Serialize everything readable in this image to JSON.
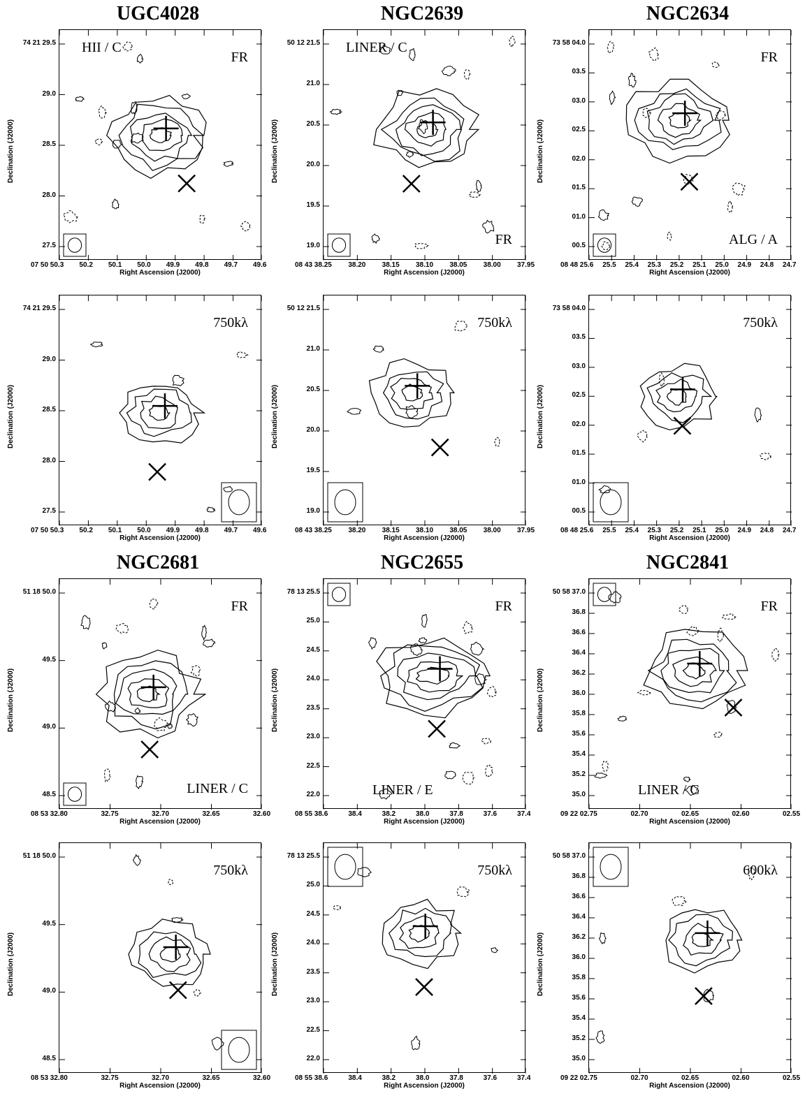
{
  "figure_titles": [
    {
      "text": "UGC4028"
    },
    {
      "text": "NGC2639"
    },
    {
      "text": "NGC2634"
    },
    {
      "text": "NGC2681"
    },
    {
      "text": "NGC2655"
    },
    {
      "text": "NGC2841"
    }
  ],
  "axis_labels": {
    "y": "Declination (J2000)",
    "x": "Right Ascension (J2000)"
  },
  "panels": [
    {
      "id": "ugc4028-top",
      "notes": [
        {
          "t": "HII / C",
          "pos": "tl"
        },
        {
          "t": "FR",
          "pos": "tr"
        }
      ],
      "yticks": [
        "74 21 29.5",
        "29.0",
        "28.5",
        "28.0",
        "27.5"
      ],
      "xticks": [
        "07 50 50.3",
        "50.2",
        "50.1",
        "50.0",
        "49.9",
        "49.8",
        "49.7",
        "49.6"
      ]
    },
    {
      "id": "ngc2639-top",
      "notes": [
        {
          "t": "LINER / C",
          "pos": "tl"
        },
        {
          "t": "FR",
          "pos": "br"
        }
      ],
      "yticks": [
        "50 12 21.5",
        "21.0",
        "20.5",
        "20.0",
        "19.5",
        "19.0"
      ],
      "xticks": [
        "08 43 38.25",
        "38.20",
        "38.15",
        "38.10",
        "38.05",
        "38.00",
        "37.95"
      ]
    },
    {
      "id": "ngc2634-top",
      "notes": [
        {
          "t": "FR",
          "pos": "tr"
        },
        {
          "t": "ALG / A",
          "pos": "br"
        }
      ],
      "yticks": [
        "73 58 04.0",
        "03.5",
        "03.0",
        "02.5",
        "02.0",
        "01.5",
        "01.0",
        "00.5"
      ],
      "xticks": [
        "08 48 25.6",
        "25.5",
        "25.4",
        "25.3",
        "25.2",
        "25.1",
        "25.0",
        "24.9",
        "24.8",
        "24.7"
      ]
    },
    {
      "id": "ugc4028-bot",
      "notes": [
        {
          "t": "750kλ",
          "pos": "tr"
        }
      ],
      "yticks": [
        "74 21 29.5",
        "29.0",
        "28.5",
        "28.0",
        "27.5"
      ],
      "xticks": [
        "07 50 50.3",
        "50.2",
        "50.1",
        "50.0",
        "49.9",
        "49.8",
        "49.7",
        "49.6"
      ]
    },
    {
      "id": "ngc2639-bot",
      "notes": [
        {
          "t": "750kλ",
          "pos": "tr"
        }
      ],
      "yticks": [
        "50 12 21.5",
        "21.0",
        "20.5",
        "20.0",
        "19.5",
        "19.0"
      ],
      "xticks": [
        "08 43 38.25",
        "38.20",
        "38.15",
        "38.10",
        "38.05",
        "38.00",
        "37.95"
      ]
    },
    {
      "id": "ngc2634-bot",
      "notes": [
        {
          "t": "750kλ",
          "pos": "tr"
        }
      ],
      "yticks": [
        "73 58 04.0",
        "03.5",
        "03.0",
        "02.5",
        "02.0",
        "01.5",
        "01.0",
        "00.5"
      ],
      "xticks": [
        "08 48 25.6",
        "25.5",
        "25.4",
        "25.3",
        "25.2",
        "25.1",
        "25.0",
        "24.9",
        "24.8",
        "24.7"
      ]
    },
    {
      "id": "ngc2681-top",
      "notes": [
        {
          "t": "FR",
          "pos": "tr"
        },
        {
          "t": "LINER / C",
          "pos": "br"
        }
      ],
      "yticks": [
        "51 18 50.0",
        "49.5",
        "49.0",
        "48.5"
      ],
      "xticks": [
        "08 53 32.80",
        "32.75",
        "32.70",
        "32.65",
        "32.60"
      ]
    },
    {
      "id": "ngc2655-top",
      "notes": [
        {
          "t": "FR",
          "pos": "tr"
        },
        {
          "t": "LINER / E",
          "pos": "bl"
        }
      ],
      "yticks": [
        "78 13 25.5",
        "25.0",
        "24.5",
        "24.0",
        "23.5",
        "23.0",
        "22.5",
        "22.0"
      ],
      "xticks": [
        "08 55 38.6",
        "38.4",
        "38.2",
        "38.0",
        "37.8",
        "37.6",
        "37.4"
      ]
    },
    {
      "id": "ngc2841-top",
      "notes": [
        {
          "t": "FR",
          "pos": "tr"
        },
        {
          "t": "LINER / C",
          "pos": "bl"
        }
      ],
      "yticks": [
        "50 58 37.0",
        "36.8",
        "36.6",
        "36.4",
        "36.2",
        "36.0",
        "35.8",
        "35.6",
        "35.4",
        "35.2",
        "35.0"
      ],
      "xticks": [
        "09 22 02.75",
        "02.70",
        "02.65",
        "02.60",
        "02.55"
      ]
    },
    {
      "id": "ngc2681-bot",
      "notes": [
        {
          "t": "750kλ",
          "pos": "tr"
        }
      ],
      "yticks": [
        "51 18 50.0",
        "49.5",
        "49.0",
        "48.5"
      ],
      "xticks": [
        "08 53 32.80",
        "32.75",
        "32.70",
        "32.65",
        "32.60"
      ]
    },
    {
      "id": "ngc2655-bot",
      "notes": [
        {
          "t": "750kλ",
          "pos": "tr"
        }
      ],
      "yticks": [
        "78 13 25.5",
        "25.0",
        "24.5",
        "24.0",
        "23.5",
        "23.0",
        "22.5",
        "22.0"
      ],
      "xticks": [
        "08 55 38.6",
        "38.4",
        "38.2",
        "38.0",
        "37.8",
        "37.6",
        "37.4"
      ]
    },
    {
      "id": "ngc2841-bot",
      "notes": [
        {
          "t": "600kλ",
          "pos": "tr"
        }
      ],
      "yticks": [
        "50 58 37.0",
        "36.8",
        "36.6",
        "36.4",
        "36.2",
        "36.0",
        "35.8",
        "35.6",
        "35.4",
        "35.2",
        "35.0"
      ],
      "xticks": [
        "09 22 02.75",
        "02.70",
        "02.65",
        "02.60",
        "02.55"
      ]
    }
  ]
}
